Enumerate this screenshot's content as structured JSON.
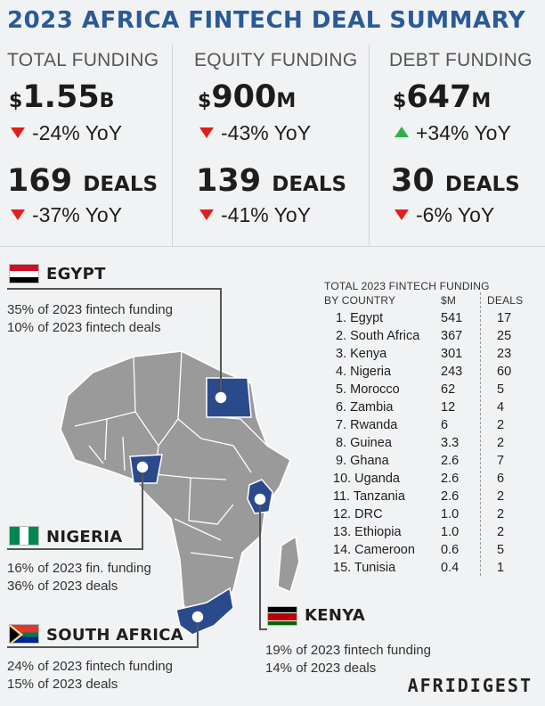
{
  "title": "2023 AFRICA FINTECH DEAL SUMMARY",
  "colors": {
    "title_blue": "#2a5a98",
    "map_grey": "#9a9a9a",
    "highlight_blue": "#2b4a8c",
    "down_red": "#e0201e",
    "up_green": "#2fb24a"
  },
  "summary": [
    {
      "header": "TOTAL FUNDING",
      "currency": "$",
      "amount": "1.55",
      "unit": "B",
      "amount_yoy": "-24% YoY",
      "amount_dir": "down",
      "deals": "169",
      "deals_label": "DEALS",
      "deals_yoy": "-37% YoY",
      "deals_dir": "down"
    },
    {
      "header": "EQUITY FUNDING",
      "currency": "$",
      "amount": "900",
      "unit": "M",
      "amount_yoy": "-43% YoY",
      "amount_dir": "down",
      "deals": "139",
      "deals_label": "DEALS",
      "deals_yoy": "-41% YoY",
      "deals_dir": "down"
    },
    {
      "header": "DEBT FUNDING",
      "currency": "$",
      "amount": "647",
      "unit": "M",
      "amount_yoy": "+34% YoY",
      "amount_dir": "up",
      "deals": "30",
      "deals_label": "DEALS",
      "deals_yoy": "-6% YoY",
      "deals_dir": "down"
    }
  ],
  "callouts": {
    "egypt": {
      "name": "EGYPT",
      "line1": "35% of 2023 fintech funding",
      "line2": "10% of 2023 fintech deals"
    },
    "nigeria": {
      "name": "NIGERIA",
      "line1": "16% of 2023 fin. funding",
      "line2": "36% of 2023 deals"
    },
    "south_africa": {
      "name": "SOUTH AFRICA",
      "line1": "24% of 2023 fintech funding",
      "line2": "15% of 2023 deals"
    },
    "kenya": {
      "name": "KENYA",
      "line1": "19% of 2023 fintech funding",
      "line2": "14% of 2023 deals"
    }
  },
  "chart_data": {
    "type": "table",
    "title_line1": "TOTAL 2023 FINTECH FUNDING",
    "title_line2": "BY COUNTRY",
    "columns": [
      "$M",
      "DEALS"
    ],
    "rows": [
      {
        "rank": "1.",
        "country": "Egypt",
        "usd_m": "541",
        "deals": "17"
      },
      {
        "rank": "2.",
        "country": "South Africa",
        "usd_m": "367",
        "deals": "25"
      },
      {
        "rank": "3.",
        "country": "Kenya",
        "usd_m": "301",
        "deals": "23"
      },
      {
        "rank": "4.",
        "country": "Nigeria",
        "usd_m": "243",
        "deals": "60"
      },
      {
        "rank": "5.",
        "country": "Morocco",
        "usd_m": "62",
        "deals": "5"
      },
      {
        "rank": "6.",
        "country": "Zambia",
        "usd_m": "12",
        "deals": "4"
      },
      {
        "rank": "7.",
        "country": "Rwanda",
        "usd_m": "6",
        "deals": "2"
      },
      {
        "rank": "8.",
        "country": "Guinea",
        "usd_m": "3.3",
        "deals": "2"
      },
      {
        "rank": "9.",
        "country": "Ghana",
        "usd_m": "2.6",
        "deals": "7"
      },
      {
        "rank": "10.",
        "country": "Uganda",
        "usd_m": "2.6",
        "deals": "6"
      },
      {
        "rank": "11.",
        "country": "Tanzania",
        "usd_m": "2.6",
        "deals": "2"
      },
      {
        "rank": "12.",
        "country": "DRC",
        "usd_m": "1.0",
        "deals": "2"
      },
      {
        "rank": "13.",
        "country": "Ethiopia",
        "usd_m": "1.0",
        "deals": "2"
      },
      {
        "rank": "14.",
        "country": "Cameroon",
        "usd_m": "0.6",
        "deals": "5"
      },
      {
        "rank": "15.",
        "country": "Tunisia",
        "usd_m": "0.4",
        "deals": "1"
      }
    ]
  },
  "brand": "AFRIDIGEST"
}
